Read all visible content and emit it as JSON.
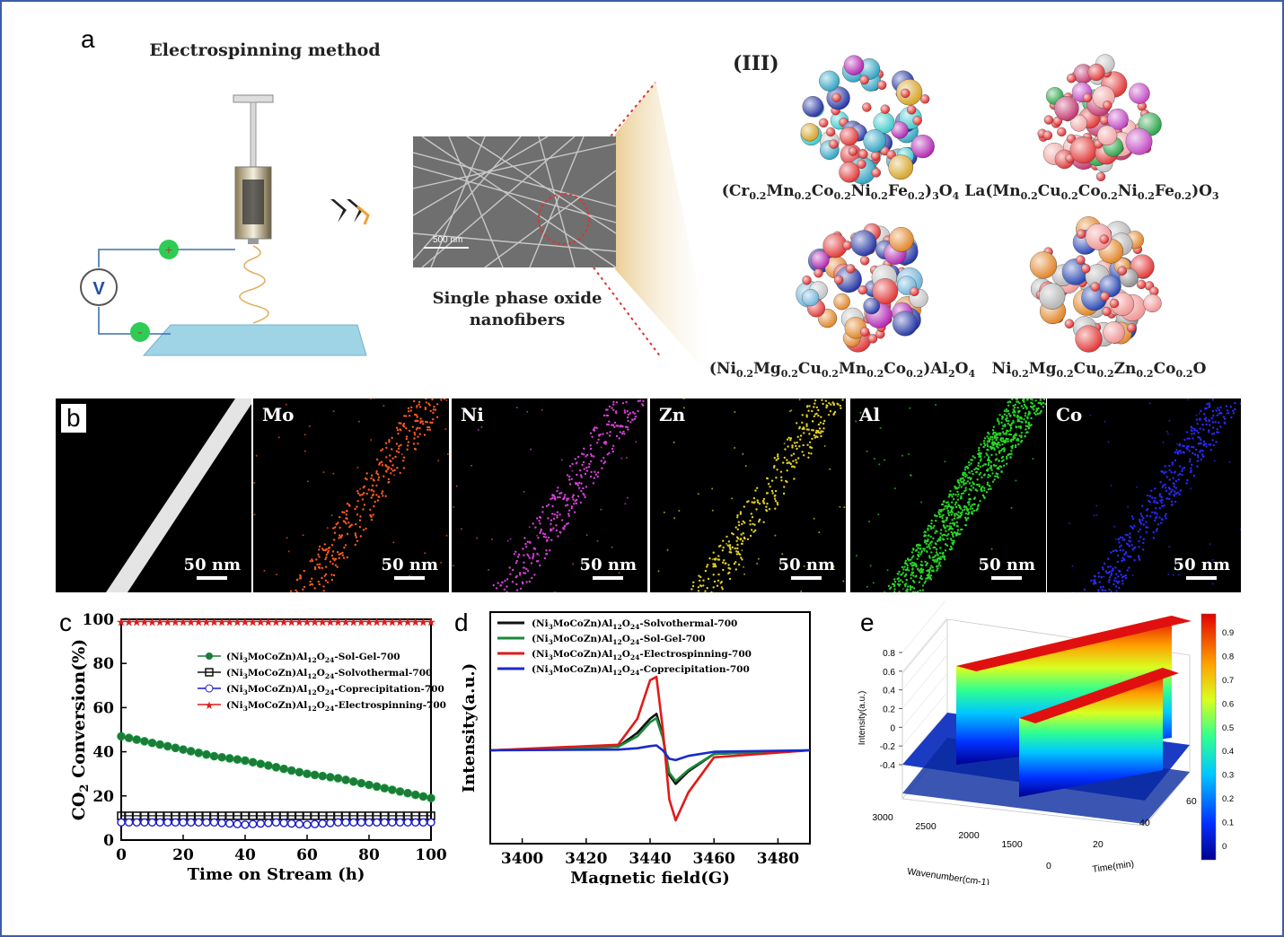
{
  "panels": {
    "a": "a",
    "b": "b",
    "c": "c",
    "d": "d",
    "e": "e"
  },
  "panel_a": {
    "title": "Electrospinning method",
    "voltmeter": "V",
    "plus": "+",
    "minus": "-",
    "sem_scale": "500 nm",
    "fiber_caption_1": "Single phase oxide",
    "fiber_caption_2": "nanofibers",
    "roman": "(III)",
    "formulas": [
      "(Cr0.2Mn0.2Co0.2Ni0.2Fe0.2)3O4",
      "La(Mn0.2Cu0.2Co0.2Ni0.2Fe0.2)O3",
      "(Ni0.2Mg0.2Cu0.2Mn0.2Co0.2)Al2O4",
      "Ni0.2Mg0.2Cu0.2Zn0.2Co0.2O"
    ]
  },
  "panel_b": {
    "tiles": [
      {
        "label": "",
        "color": "#ffffff",
        "scale": "50 nm"
      },
      {
        "label": "Mo",
        "color": "#ff5a1f",
        "scale": "50 nm"
      },
      {
        "label": "Ni",
        "color": "#d93fd9",
        "scale": "50 nm"
      },
      {
        "label": "Zn",
        "color": "#e0d020",
        "scale": "50 nm"
      },
      {
        "label": "Al",
        "color": "#28d428",
        "scale": "50 nm"
      },
      {
        "label": "Co",
        "color": "#2a2aff",
        "scale": "50 nm"
      }
    ]
  },
  "chart_data": [
    {
      "type": "line",
      "panel": "c",
      "xlabel": "Time on Stream (h)",
      "ylabel": "CO2 Conversion(%)",
      "xlim": [
        0,
        100
      ],
      "ylim": [
        0,
        100
      ],
      "xticks": [
        0,
        20,
        40,
        60,
        80,
        100
      ],
      "yticks": [
        0,
        20,
        40,
        60,
        80,
        100
      ],
      "legend_position": "top-right",
      "series": [
        {
          "name": "(Ni3MoCoZn)Al12O24-Sol-Gel-700",
          "color": "#1f7a3a",
          "marker": "circle",
          "x": [
            0,
            10,
            20,
            30,
            40,
            50,
            60,
            70,
            80,
            90,
            100
          ],
          "y": [
            47,
            44,
            41,
            38,
            36,
            33,
            30,
            28,
            25,
            22,
            19
          ]
        },
        {
          "name": "(Ni3MoCoZn)Al12O24-Solvothermal-700",
          "color": "#111111",
          "marker": "square",
          "x": [
            0,
            10,
            20,
            30,
            40,
            50,
            60,
            70,
            80,
            90,
            100
          ],
          "y": [
            11,
            11,
            11,
            11,
            11,
            11,
            11,
            11,
            11,
            11,
            11
          ]
        },
        {
          "name": "(Ni3MoCoZn)Al12O24-Coprecipitation-700",
          "color": "#1a1acc",
          "marker": "open-circle",
          "x": [
            0,
            10,
            20,
            30,
            40,
            50,
            60,
            70,
            80,
            90,
            100
          ],
          "y": [
            8,
            8,
            8,
            8,
            7,
            8,
            7,
            8,
            8,
            8,
            8
          ]
        },
        {
          "name": "(Ni3MoCoZn)Al12O24-Electrospinning-700",
          "color": "#e01a1a",
          "marker": "star",
          "x": [
            0,
            10,
            20,
            30,
            40,
            50,
            60,
            70,
            80,
            90,
            100
          ],
          "y": [
            99,
            99,
            99,
            99,
            99,
            99,
            99,
            99,
            99,
            99,
            99
          ]
        }
      ]
    },
    {
      "type": "line",
      "panel": "d",
      "xlabel": "Magnetic field(G)",
      "ylabel": "Intensity(a.u.)",
      "xlim": [
        3390,
        3490
      ],
      "xticks": [
        3400,
        3420,
        3440,
        3460,
        3480
      ],
      "legend_position": "top",
      "series": [
        {
          "name": "(Ni3MoCoZn)Al12O24-Solvothermal-700",
          "color": "#111111",
          "x": [
            3390,
            3430,
            3436,
            3440,
            3442,
            3444,
            3446,
            3448,
            3452,
            3460,
            3490
          ],
          "y": [
            0,
            0.05,
            0.25,
            0.45,
            0.52,
            0.2,
            -0.35,
            -0.48,
            -0.3,
            -0.05,
            0
          ]
        },
        {
          "name": "(Ni3MoCoZn)Al12O24-Sol-Gel-700",
          "color": "#1a8a3a",
          "x": [
            3390,
            3430,
            3436,
            3440,
            3442,
            3444,
            3446,
            3448,
            3452,
            3460,
            3490
          ],
          "y": [
            0,
            0.05,
            0.2,
            0.4,
            0.46,
            0.18,
            -0.32,
            -0.44,
            -0.28,
            -0.05,
            0
          ]
        },
        {
          "name": "(Ni3MoCoZn)Al12O24-Electrospinning-700",
          "color": "#e01a1a",
          "x": [
            3390,
            3430,
            3436,
            3440,
            3442,
            3444,
            3446,
            3448,
            3452,
            3460,
            3490
          ],
          "y": [
            0,
            0.08,
            0.45,
            1.0,
            1.05,
            0.3,
            -0.7,
            -1.0,
            -0.6,
            -0.1,
            0
          ]
        },
        {
          "name": "(Ni3MoCoZn)Al12O24-Coprecipitation-700",
          "color": "#1a2acc",
          "x": [
            3390,
            3430,
            3436,
            3440,
            3442,
            3444,
            3446,
            3448,
            3452,
            3460,
            3490
          ],
          "y": [
            0,
            0.01,
            0.03,
            0.06,
            0.07,
            0.0,
            -0.12,
            -0.14,
            -0.08,
            -0.02,
            0
          ]
        }
      ]
    },
    {
      "type": "heatmap",
      "panel": "e",
      "xlabel": "Wavenumber(cm-1)",
      "ylabel": "Time(min)",
      "zlabel": "Intensity(a.u.)",
      "wavenumber_ticks": [
        3000,
        2500,
        2000,
        1500
      ],
      "time_ticks": [
        0,
        20,
        40,
        60
      ],
      "intensity_ticks": [
        -0.4,
        -0.2,
        0,
        0.2,
        0.4,
        0.6,
        0.8
      ],
      "colorbar_ticks": [
        0,
        0.1,
        0.2,
        0.3,
        0.4,
        0.5,
        0.6,
        0.7,
        0.8,
        0.9
      ],
      "peaks": [
        {
          "wavenumber": 2350,
          "max_intensity": 0.9
        },
        {
          "wavenumber": 1600,
          "max_intensity": 0.8
        }
      ]
    }
  ],
  "colors": {
    "frame": "#3b5ea8"
  }
}
